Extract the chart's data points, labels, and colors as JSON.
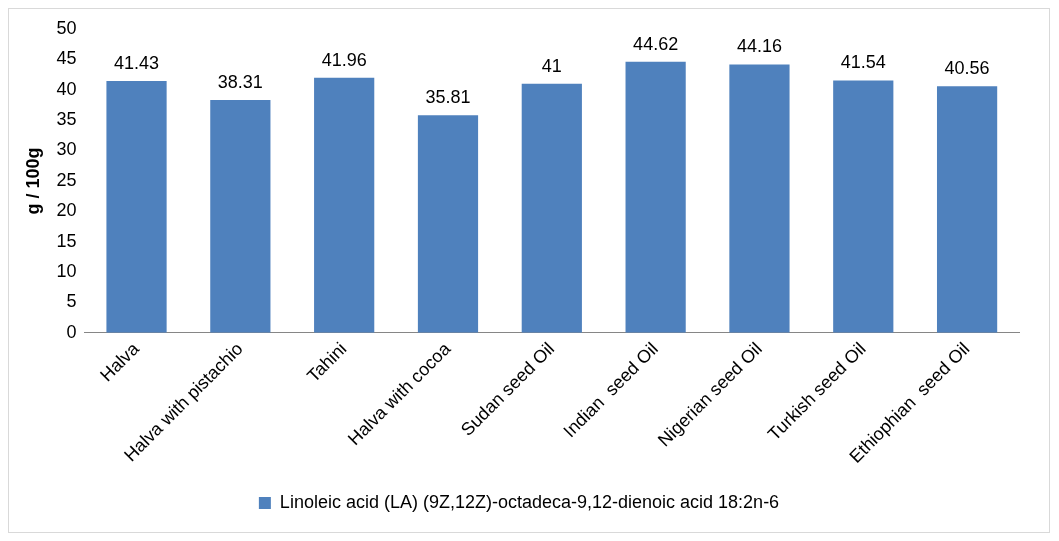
{
  "chart_data": {
    "type": "bar",
    "ylabel": "g / 100g",
    "categories": [
      "Halva",
      "Halva with pistachio",
      "Tahini",
      "Halva with cocoa",
      "Sudan seed Oil",
      "Indian  seed Oil",
      "Nigerian seed Oil",
      "Turkish seed Oil",
      "Ethiophian  seed Oil"
    ],
    "series": [
      {
        "name": "Linoleic acid (LA) (9Z,12Z)-octadeca-9,12-dienoic acid 18:2n-6",
        "color": "#4f81bd",
        "values": [
          41.43,
          38.31,
          41.96,
          35.81,
          41,
          44.62,
          44.16,
          41.54,
          40.56
        ]
      }
    ],
    "ylim": [
      0,
      50
    ],
    "yticks": [
      0,
      5,
      10,
      15,
      20,
      25,
      30,
      35,
      40,
      45,
      50
    ],
    "grid": false,
    "legend": "bottom",
    "data_labels": true
  }
}
